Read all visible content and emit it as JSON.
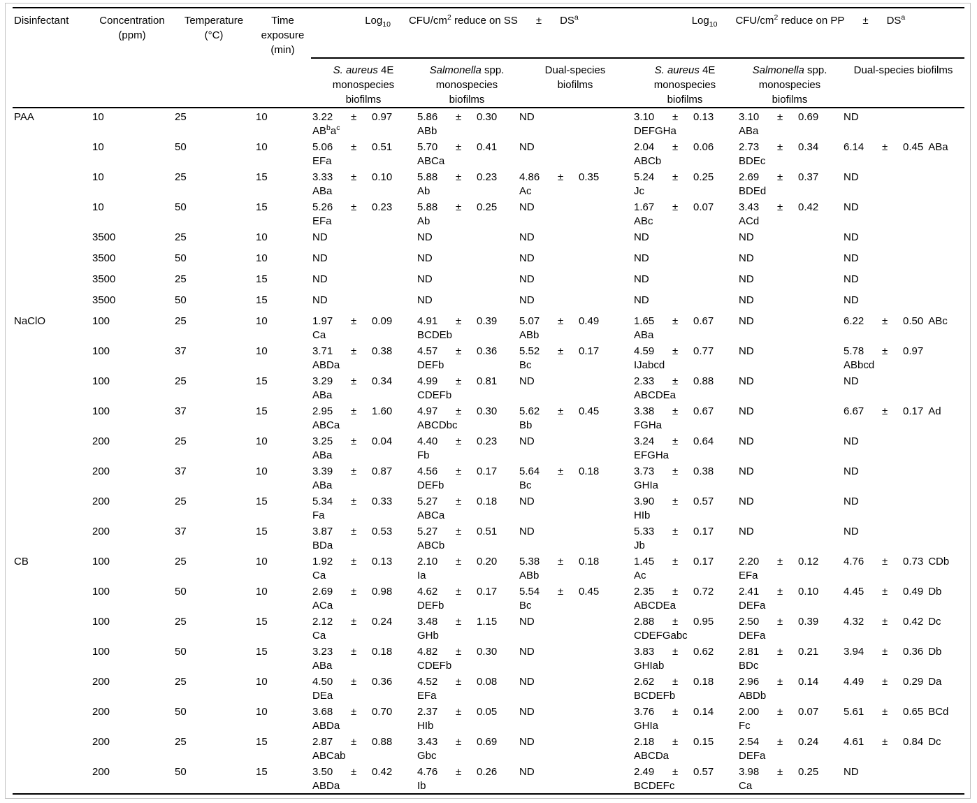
{
  "table": {
    "plus_minus": "±",
    "param_headers": [
      "Disinfectant",
      "Concentration\n(ppm)",
      "Temperature\n(°C)",
      "Time\nexposure\n(min)"
    ],
    "group_headers": [
      {
        "parts": [
          "Log~10~",
          "CFU/cm^2^ reduce on SS",
          "±",
          "DS^a^"
        ]
      },
      {
        "parts": [
          "Log~10~",
          "CFU/cm^2^ reduce on PP",
          "±",
          "DS^a^"
        ]
      }
    ],
    "subheaders": [
      "*S. aureus* 4E\nmonospecies\nbiofilms",
      "*Salmonella* spp.\nmonospecies\nbiofilms",
      "Dual-species\nbiofilms",
      "*S. aureus* 4E\nmonospecies\nbiofilms",
      "*Salmonella* spp.\nmonospecies\nbiofilms",
      "Dual-species biofilms"
    ],
    "rows": [
      {
        "disinfectant": "PAA",
        "concentration_ppm": "10",
        "temperature_c": "25",
        "time_min": "10",
        "cells": [
          {
            "value": "3.22",
            "sd": "0.97",
            "letters": "AB^b^a^c^"
          },
          {
            "value": "5.86",
            "sd": "0.30",
            "letters": "ABb"
          },
          {
            "value": "ND"
          },
          {
            "value": "3.10",
            "sd": "0.13",
            "letters": "DEFGHa"
          },
          {
            "value": "3.10",
            "sd": "0.69",
            "letters": "ABa"
          },
          {
            "value": "ND"
          }
        ]
      },
      {
        "disinfectant": "",
        "concentration_ppm": "10",
        "temperature_c": "50",
        "time_min": "10",
        "cells": [
          {
            "value": "5.06",
            "sd": "0.51",
            "letters": "EFa"
          },
          {
            "value": "5.70",
            "sd": "0.41",
            "letters": "ABCa"
          },
          {
            "value": "ND"
          },
          {
            "value": "2.04",
            "sd": "0.06",
            "letters": "ABCb"
          },
          {
            "value": "2.73",
            "sd": "0.34",
            "letters": "BDEc"
          },
          {
            "value": "6.14",
            "sd": "0.45",
            "letters": "ABa"
          }
        ]
      },
      {
        "disinfectant": "",
        "concentration_ppm": "10",
        "temperature_c": "25",
        "time_min": "15",
        "cells": [
          {
            "value": "3.33",
            "sd": "0.10",
            "letters": "ABa"
          },
          {
            "value": "5.88",
            "sd": "0.23",
            "letters": "Ab"
          },
          {
            "value": "4.86",
            "sd": "0.35",
            "letters": "Ac"
          },
          {
            "value": "5.24",
            "sd": "0.25",
            "letters": "Jc"
          },
          {
            "value": "2.69",
            "sd": "0.37",
            "letters": "BDEd"
          },
          {
            "value": "ND"
          }
        ]
      },
      {
        "disinfectant": "",
        "concentration_ppm": "10",
        "temperature_c": "50",
        "time_min": "15",
        "cells": [
          {
            "value": "5.26",
            "sd": "0.23",
            "letters": "EFa"
          },
          {
            "value": "5.88",
            "sd": "0.25",
            "letters": "Ab"
          },
          {
            "value": "ND"
          },
          {
            "value": "1.67",
            "sd": "0.07",
            "letters": "ABc"
          },
          {
            "value": "3.43",
            "sd": "0.42",
            "letters": "ACd"
          },
          {
            "value": "ND"
          }
        ]
      },
      {
        "disinfectant": "",
        "concentration_ppm": "3500",
        "temperature_c": "25",
        "time_min": "10",
        "cells": [
          {
            "value": "ND"
          },
          {
            "value": "ND"
          },
          {
            "value": "ND"
          },
          {
            "value": "ND"
          },
          {
            "value": "ND"
          },
          {
            "value": "ND"
          }
        ]
      },
      {
        "disinfectant": "",
        "concentration_ppm": "3500",
        "temperature_c": "50",
        "time_min": "10",
        "cells": [
          {
            "value": "ND"
          },
          {
            "value": "ND"
          },
          {
            "value": "ND"
          },
          {
            "value": "ND"
          },
          {
            "value": "ND"
          },
          {
            "value": "ND"
          }
        ]
      },
      {
        "disinfectant": "",
        "concentration_ppm": "3500",
        "temperature_c": "25",
        "time_min": "15",
        "cells": [
          {
            "value": "ND"
          },
          {
            "value": "ND"
          },
          {
            "value": "ND"
          },
          {
            "value": "ND"
          },
          {
            "value": "ND"
          },
          {
            "value": "ND"
          }
        ]
      },
      {
        "disinfectant": "",
        "concentration_ppm": "3500",
        "temperature_c": "50",
        "time_min": "15",
        "cells": [
          {
            "value": "ND"
          },
          {
            "value": "ND"
          },
          {
            "value": "ND"
          },
          {
            "value": "ND"
          },
          {
            "value": "ND"
          },
          {
            "value": "ND"
          }
        ]
      },
      {
        "disinfectant": "NaClO",
        "concentration_ppm": "100",
        "temperature_c": "25",
        "time_min": "10",
        "cells": [
          {
            "value": "1.97",
            "sd": "0.09",
            "letters": "Ca"
          },
          {
            "value": "4.91",
            "sd": "0.39",
            "letters": "BCDEb"
          },
          {
            "value": "5.07",
            "sd": "0.49",
            "letters": "ABb"
          },
          {
            "value": "1.65",
            "sd": "0.67",
            "letters": "ABa"
          },
          {
            "value": "ND"
          },
          {
            "value": "6.22",
            "sd": "0.50",
            "letters": "ABc"
          }
        ]
      },
      {
        "disinfectant": "",
        "concentration_ppm": "100",
        "temperature_c": "37",
        "time_min": "10",
        "cells": [
          {
            "value": "3.71",
            "sd": "0.38",
            "letters": "ABDa"
          },
          {
            "value": "4.57",
            "sd": "0.36",
            "letters": "DEFb"
          },
          {
            "value": "5.52",
            "sd": "0.17",
            "letters": "Bc"
          },
          {
            "value": "4.59",
            "sd": "0.77",
            "letters": "IJabcd"
          },
          {
            "value": "ND"
          },
          {
            "value": "5.78",
            "sd": "0.97",
            "letters": "ABbcd",
            "letters_below": true
          }
        ]
      },
      {
        "disinfectant": "",
        "concentration_ppm": "100",
        "temperature_c": "25",
        "time_min": "15",
        "cells": [
          {
            "value": "3.29",
            "sd": "0.34",
            "letters": "ABa"
          },
          {
            "value": "4.99",
            "sd": "0.81",
            "letters": "CDEFb"
          },
          {
            "value": "ND"
          },
          {
            "value": "2.33",
            "sd": "0.88",
            "letters": "ABCDEa"
          },
          {
            "value": "ND"
          },
          {
            "value": "ND"
          }
        ]
      },
      {
        "disinfectant": "",
        "concentration_ppm": "100",
        "temperature_c": "37",
        "time_min": "15",
        "cells": [
          {
            "value": "2.95",
            "sd": "1.60",
            "letters": "ABCa"
          },
          {
            "value": "4.97",
            "sd": "0.30",
            "letters": "ABCDbc"
          },
          {
            "value": "5.62",
            "sd": "0.45",
            "letters": "Bb"
          },
          {
            "value": "3.38",
            "sd": "0.67",
            "letters": "FGHa"
          },
          {
            "value": "ND"
          },
          {
            "value": "6.67",
            "sd": "0.17",
            "letters": "Ad"
          }
        ]
      },
      {
        "disinfectant": "",
        "concentration_ppm": "200",
        "temperature_c": "25",
        "time_min": "10",
        "cells": [
          {
            "value": "3.25",
            "sd": "0.04",
            "letters": "ABa"
          },
          {
            "value": "4.40",
            "sd": "0.23",
            "letters": "Fb"
          },
          {
            "value": "ND"
          },
          {
            "value": "3.24",
            "sd": "0.64",
            "letters": "EFGHa"
          },
          {
            "value": "ND"
          },
          {
            "value": "ND"
          }
        ]
      },
      {
        "disinfectant": "",
        "concentration_ppm": "200",
        "temperature_c": "37",
        "time_min": "10",
        "cells": [
          {
            "value": "3.39",
            "sd": "0.87",
            "letters": "ABa"
          },
          {
            "value": "4.56",
            "sd": "0.17",
            "letters": "DEFb"
          },
          {
            "value": "5.64",
            "sd": "0.18",
            "letters": "Bc"
          },
          {
            "value": "3.73",
            "sd": "0.38",
            "letters": "GHIa"
          },
          {
            "value": "ND"
          },
          {
            "value": "ND"
          }
        ]
      },
      {
        "disinfectant": "",
        "concentration_ppm": "200",
        "temperature_c": "25",
        "time_min": "15",
        "cells": [
          {
            "value": "5.34",
            "sd": "0.33",
            "letters": "Fa"
          },
          {
            "value": "5.27",
            "sd": "0.18",
            "letters": "ABCa"
          },
          {
            "value": "ND"
          },
          {
            "value": "3.90",
            "sd": "0.57",
            "letters": "HIb"
          },
          {
            "value": "ND"
          },
          {
            "value": "ND"
          }
        ]
      },
      {
        "disinfectant": "",
        "concentration_ppm": "200",
        "temperature_c": "37",
        "time_min": "15",
        "cells": [
          {
            "value": "3.87",
            "sd": "0.53",
            "letters": "BDa"
          },
          {
            "value": "5.27",
            "sd": "0.51",
            "letters": "ABCb"
          },
          {
            "value": "ND"
          },
          {
            "value": "5.33",
            "sd": "0.17",
            "letters": "Jb"
          },
          {
            "value": "ND"
          },
          {
            "value": "ND"
          }
        ]
      },
      {
        "disinfectant": "CB",
        "concentration_ppm": "100",
        "temperature_c": "25",
        "time_min": "10",
        "cells": [
          {
            "value": "1.92",
            "sd": "0.13",
            "letters": "Ca"
          },
          {
            "value": "2.10",
            "sd": "0.20",
            "letters": "Ia"
          },
          {
            "value": "5.38",
            "sd": "0.18",
            "letters": "ABb"
          },
          {
            "value": "1.45",
            "sd": "0.17",
            "letters": "Ac"
          },
          {
            "value": "2.20",
            "sd": "0.12",
            "letters": "EFa"
          },
          {
            "value": "4.76",
            "sd": "0.73",
            "letters": "CDb"
          }
        ]
      },
      {
        "disinfectant": "",
        "concentration_ppm": "100",
        "temperature_c": "50",
        "time_min": "10",
        "cells": [
          {
            "value": "2.69",
            "sd": "0.98",
            "letters": "ACa"
          },
          {
            "value": "4.62",
            "sd": "0.17",
            "letters": "DEFb"
          },
          {
            "value": "5.54",
            "sd": "0.45",
            "letters": "Bc"
          },
          {
            "value": "2.35",
            "sd": "0.72",
            "letters": "ABCDEa"
          },
          {
            "value": "2.41",
            "sd": "0.10",
            "letters": "DEFa"
          },
          {
            "value": "4.45",
            "sd": "0.49",
            "letters": "Db"
          }
        ]
      },
      {
        "disinfectant": "",
        "concentration_ppm": "100",
        "temperature_c": "25",
        "time_min": "15",
        "cells": [
          {
            "value": "2.12",
            "sd": "0.24",
            "letters": "Ca"
          },
          {
            "value": "3.48",
            "sd": "1.15",
            "letters": "GHb"
          },
          {
            "value": "ND"
          },
          {
            "value": "2.88",
            "sd": "0.95",
            "letters": "CDEFGabc"
          },
          {
            "value": "2.50",
            "sd": "0.39",
            "letters": "DEFa"
          },
          {
            "value": "4.32",
            "sd": "0.42",
            "letters": "Dc"
          }
        ]
      },
      {
        "disinfectant": "",
        "concentration_ppm": "100",
        "temperature_c": "50",
        "time_min": "15",
        "cells": [
          {
            "value": "3.23",
            "sd": "0.18",
            "letters": "ABa"
          },
          {
            "value": "4.82",
            "sd": "0.30",
            "letters": "CDEFb"
          },
          {
            "value": "ND"
          },
          {
            "value": "3.83",
            "sd": "0.62",
            "letters": "GHIab"
          },
          {
            "value": "2.81",
            "sd": "0.21",
            "letters": "BDc"
          },
          {
            "value": "3.94",
            "sd": "0.36",
            "letters": "Db"
          }
        ]
      },
      {
        "disinfectant": "",
        "concentration_ppm": "200",
        "temperature_c": "25",
        "time_min": "10",
        "cells": [
          {
            "value": "4.50",
            "sd": "0.36",
            "letters": "DEa"
          },
          {
            "value": "4.52",
            "sd": "0.08",
            "letters": "EFa"
          },
          {
            "value": "ND"
          },
          {
            "value": "2.62",
            "sd": "0.18",
            "letters": "BCDEFb"
          },
          {
            "value": "2.96",
            "sd": "0.14",
            "letters": "ABDb"
          },
          {
            "value": "4.49",
            "sd": "0.29",
            "letters": "Da"
          }
        ]
      },
      {
        "disinfectant": "",
        "concentration_ppm": "200",
        "temperature_c": "50",
        "time_min": "10",
        "cells": [
          {
            "value": "3.68",
            "sd": "0.70",
            "letters": "ABDa"
          },
          {
            "value": "2.37",
            "sd": "0.05",
            "letters": "HIb"
          },
          {
            "value": "ND"
          },
          {
            "value": "3.76",
            "sd": "0.14",
            "letters": "GHIa"
          },
          {
            "value": "2.00",
            "sd": "0.07",
            "letters": "Fc"
          },
          {
            "value": "5.61",
            "sd": "0.65",
            "letters": "BCd"
          }
        ]
      },
      {
        "disinfectant": "",
        "concentration_ppm": "200",
        "temperature_c": "25",
        "time_min": "15",
        "cells": [
          {
            "value": "2.87",
            "sd": "0.88",
            "letters": "ABCab"
          },
          {
            "value": "3.43",
            "sd": "0.69",
            "letters": "Gbc"
          },
          {
            "value": "ND"
          },
          {
            "value": "2.18",
            "sd": "0.15",
            "letters": "ABCDa"
          },
          {
            "value": "2.54",
            "sd": "0.24",
            "letters": "DEFa"
          },
          {
            "value": "4.61",
            "sd": "0.84",
            "letters": "Dc"
          }
        ]
      },
      {
        "disinfectant": "",
        "concentration_ppm": "200",
        "temperature_c": "50",
        "time_min": "15",
        "cells": [
          {
            "value": "3.50",
            "sd": "0.42",
            "letters": "ABDa"
          },
          {
            "value": "4.76",
            "sd": "0.26",
            "letters": "Ib"
          },
          {
            "value": "ND"
          },
          {
            "value": "2.49",
            "sd": "0.57",
            "letters": "BCDEFc"
          },
          {
            "value": "3.98",
            "sd": "0.25",
            "letters": "Ca"
          },
          {
            "value": "ND"
          }
        ]
      }
    ]
  }
}
